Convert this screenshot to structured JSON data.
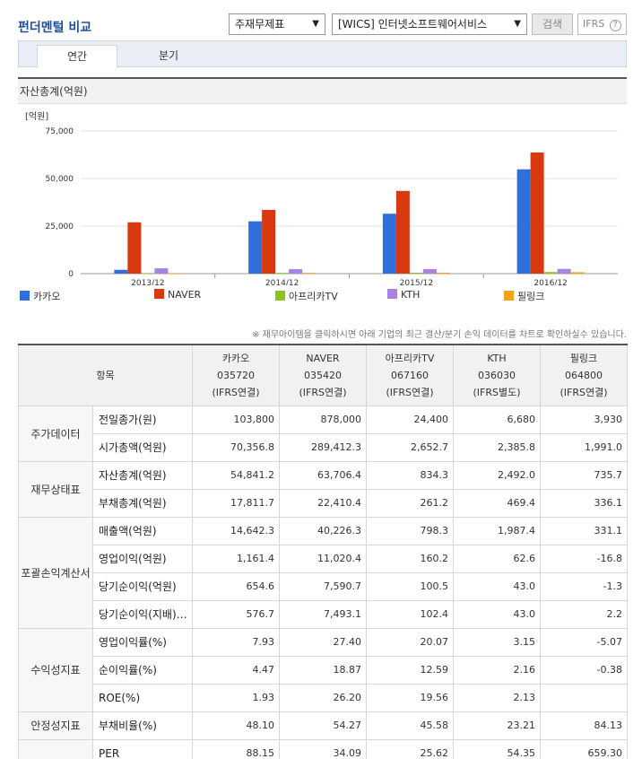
{
  "header": {
    "title": "펀더멘털 비교",
    "select_type": "주재무제표",
    "select_industry": "[WICS] 인터넷소프트웨어서비스",
    "search_label": "검색",
    "ifrs_label": "IFRS",
    "help_icon": "?"
  },
  "tabs": [
    {
      "label": "연간",
      "active": true
    },
    {
      "label": "분기",
      "active": false
    }
  ],
  "chart": {
    "title": "자산총계(억원)",
    "unit_label": "[억원]"
  },
  "chart_data": {
    "type": "bar",
    "categories": [
      "2013/12",
      "2014/12",
      "2015/12",
      "2016/12"
    ],
    "ylim": [
      0,
      75000
    ],
    "yticks": [
      "0",
      "25,000",
      "50,000",
      "75,000"
    ],
    "ytick_values": [
      0,
      25000,
      50000,
      75000
    ],
    "grid": true,
    "legend_position": "bottom",
    "series": [
      {
        "name": "카카오",
        "color": "#2f6fdc",
        "values": [
          2000,
          27500,
          31500,
          54841
        ]
      },
      {
        "name": "NAVER",
        "color": "#d9390f",
        "values": [
          27000,
          33500,
          43500,
          63706
        ]
      },
      {
        "name": "아프리카TV",
        "color": "#8bc21c",
        "values": [
          300,
          400,
          500,
          834
        ]
      },
      {
        "name": "KTH",
        "color": "#a983e0",
        "values": [
          2800,
          2400,
          2400,
          2492
        ]
      },
      {
        "name": "필링크",
        "color": "#f5a21b",
        "values": [
          300,
          400,
          500,
          736
        ]
      }
    ]
  },
  "note": "※ 재무아이템을 클릭하시면 아래 기업의 최근 결산/분기 손익 데이터를 차트로 확인하실수 있습니다.",
  "table": {
    "item_header": "항목",
    "companies": [
      {
        "name": "카카오",
        "code": "035720",
        "basis": "(IFRS연결)"
      },
      {
        "name": "NAVER",
        "code": "035420",
        "basis": "(IFRS연결)"
      },
      {
        "name": "아프리카TV",
        "code": "067160",
        "basis": "(IFRS연결)"
      },
      {
        "name": "KTH",
        "code": "036030",
        "basis": "(IFRS별도)"
      },
      {
        "name": "필링크",
        "code": "064800",
        "basis": "(IFRS연결)"
      }
    ],
    "groups": [
      {
        "name": "주가데이터",
        "rows": [
          {
            "item": "전일종가(원)",
            "values": [
              "103,800",
              "878,000",
              "24,400",
              "6,680",
              "3,930"
            ]
          },
          {
            "item": "시가총액(억원)",
            "values": [
              "70,356.8",
              "289,412.3",
              "2,652.7",
              "2,385.8",
              "1,991.0"
            ]
          }
        ]
      },
      {
        "name": "재무상태표",
        "rows": [
          {
            "item": "자산총계(억원)",
            "values": [
              "54,841.2",
              "63,706.4",
              "834.3",
              "2,492.0",
              "735.7"
            ]
          },
          {
            "item": "부채총계(억원)",
            "values": [
              "17,811.7",
              "22,410.4",
              "261.2",
              "469.4",
              "336.1"
            ]
          }
        ]
      },
      {
        "name": "포괄손익계산서",
        "rows": [
          {
            "item": "매출액(억원)",
            "values": [
              "14,642.3",
              "40,226.3",
              "798.3",
              "1,987.4",
              "331.1"
            ]
          },
          {
            "item": "영업이익(억원)",
            "values": [
              "1,161.4",
              "11,020.4",
              "160.2",
              "62.6",
              "-16.8"
            ]
          },
          {
            "item": "당기순이익(억원)",
            "values": [
              "654.6",
              "7,590.7",
              "100.5",
              "43.0",
              "-1.3"
            ]
          },
          {
            "item": "당기순이익(지배)…",
            "values": [
              "576.7",
              "7,493.1",
              "102.4",
              "43.0",
              "2.2"
            ]
          }
        ]
      },
      {
        "name": "수익성지표",
        "rows": [
          {
            "item": "영업이익률(%)",
            "values": [
              "7.93",
              "27.40",
              "20.07",
              "3.15",
              "-5.07"
            ]
          },
          {
            "item": "순이익률(%)",
            "values": [
              "4.47",
              "18.87",
              "12.59",
              "2.16",
              "-0.38"
            ]
          },
          {
            "item": "ROE(%)",
            "values": [
              "1.93",
              "26.20",
              "19.56",
              "2.13",
              ""
            ]
          }
        ]
      },
      {
        "name": "안정성지표",
        "rows": [
          {
            "item": "부채비율(%)",
            "values": [
              "48.10",
              "54.27",
              "45.58",
              "23.21",
              "84.13"
            ]
          }
        ]
      },
      {
        "name": "",
        "rows": [
          {
            "item": "PER",
            "values": [
              "88.15",
              "34.09",
              "25.62",
              "54.35",
              "659.30"
            ]
          }
        ]
      }
    ]
  }
}
